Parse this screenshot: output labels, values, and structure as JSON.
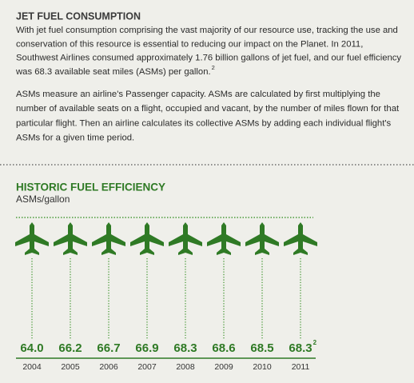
{
  "article": {
    "title": "JET FUEL CONSUMPTION",
    "paragraph1": [
      "With jet fuel consumption comprising the vast majority of our resource use, tracking the use and",
      "conservation of this resource is essential to reducing our impact on the Planet. In 2011,",
      "Southwest Airlines consumed approximately 1.76 billion gallons of jet fuel, and our fuel efficiency",
      "was 68.3 available seat miles (ASMs) per gallon."
    ],
    "paragraph1_note": "2",
    "paragraph2": [
      "ASMs measure an airline's Passenger capacity. ASMs are calculated by first multiplying the",
      "number of available seats on a flight, occupied and vacant, by the number of miles flown for that",
      "particular flight. Then an airline calculates its collective ASMs by adding each individual flight's",
      "ASMs for a given time period."
    ]
  },
  "efficiency": {
    "title": "HISTORIC FUEL EFFICIENCY",
    "subtitle": "ASMs/gallon",
    "items": [
      {
        "value": "64.0",
        "year": "2004"
      },
      {
        "value": "66.2",
        "year": "2005"
      },
      {
        "value": "66.7",
        "year": "2006"
      },
      {
        "value": "66.9",
        "year": "2007"
      },
      {
        "value": "68.3",
        "year": "2008"
      },
      {
        "value": "68.6",
        "year": "2009"
      },
      {
        "value": "68.5",
        "year": "2010"
      },
      {
        "value": "68.3",
        "year": "2011",
        "note": "2"
      }
    ]
  }
}
